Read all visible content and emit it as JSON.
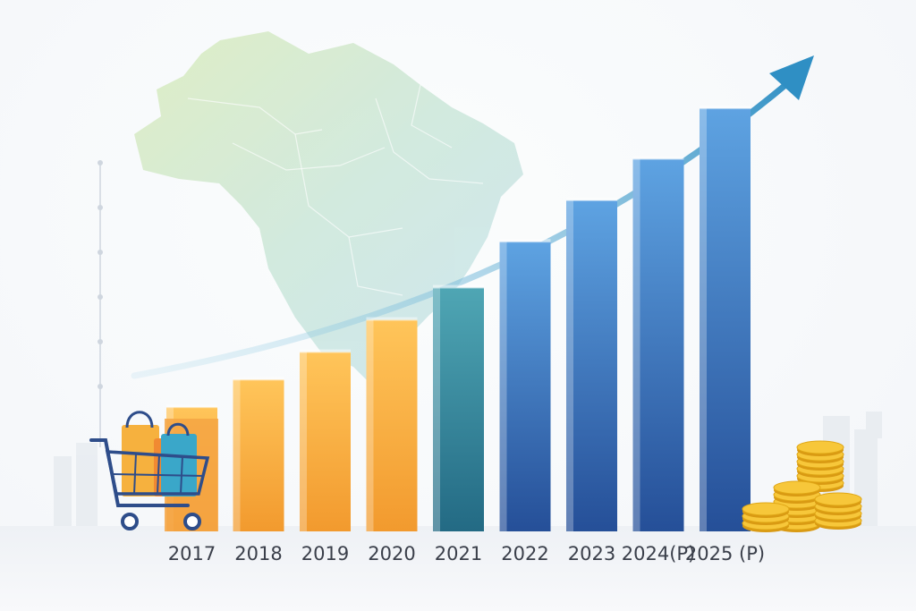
{
  "chart_data": {
    "type": "bar",
    "categories": [
      "2017",
      "2018",
      "2019",
      "2020",
      "2021",
      "2022",
      "2023",
      "2024(P)",
      "2025 (P)"
    ],
    "values": [
      27,
      33,
      39,
      46,
      53,
      63,
      72,
      81,
      92
    ],
    "ylim": [
      0,
      100
    ],
    "grid": false,
    "trend_arrow": true,
    "colors": {
      "orange_top": "#ffc55a",
      "orange_bottom": "#f29a2e",
      "teal_top": "#4fa6b4",
      "teal_bottom": "#236a84",
      "blue_top": "#5ea3e2",
      "blue_bottom": "#254f98",
      "arrow": "#3b98c8"
    },
    "icons": [
      "brazil-map-icon",
      "shopping-cart-icon",
      "coin-stack-icon",
      "trend-arrow-icon"
    ]
  }
}
